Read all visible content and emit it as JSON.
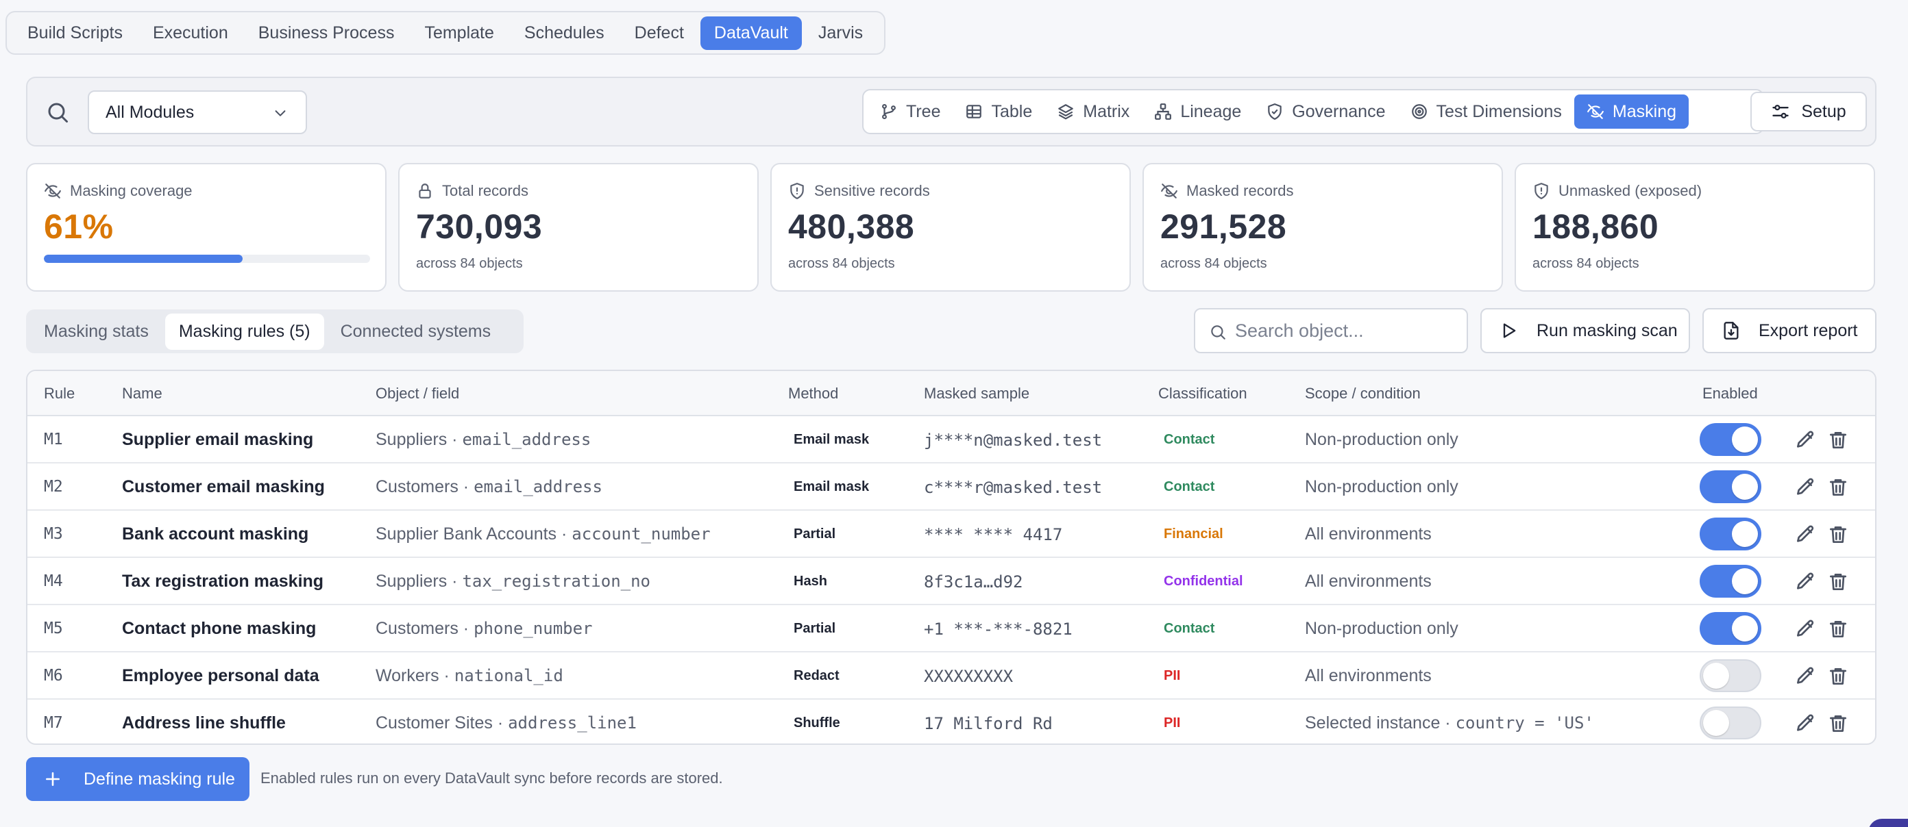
{
  "topnav": {
    "tabs": [
      {
        "label": "Build Scripts",
        "active": false
      },
      {
        "label": "Execution",
        "active": false
      },
      {
        "label": "Business Process",
        "active": false
      },
      {
        "label": "Template",
        "active": false
      },
      {
        "label": "Schedules",
        "active": false
      },
      {
        "label": "Defect",
        "active": false
      },
      {
        "label": "DataVault",
        "active": true
      },
      {
        "label": "Jarvis",
        "active": false
      }
    ]
  },
  "toolbar": {
    "module_select": "All Modules",
    "views": [
      {
        "label": "Tree",
        "icon": "git-branch-icon",
        "active": false
      },
      {
        "label": "Table",
        "icon": "table-icon",
        "active": false
      },
      {
        "label": "Matrix",
        "icon": "layers-icon",
        "active": false
      },
      {
        "label": "Lineage",
        "icon": "network-icon",
        "active": false
      },
      {
        "label": "Governance",
        "icon": "shield-check-icon",
        "active": false
      },
      {
        "label": "Test Dimensions",
        "icon": "target-icon",
        "active": false
      },
      {
        "label": "Masking",
        "icon": "eye-off-icon",
        "active": true
      }
    ],
    "setup_label": "Setup"
  },
  "cards": [
    {
      "label": "Masking coverage",
      "value": "61%",
      "icon": "eye-off-icon",
      "progress": 0.61
    },
    {
      "label": "Total records",
      "value": "730,093",
      "sub": "across 84 objects",
      "icon": "lock-icon"
    },
    {
      "label": "Sensitive records",
      "value": "480,388",
      "sub": "across 84 objects",
      "icon": "shield-alert-icon"
    },
    {
      "label": "Masked records",
      "value": "291,528",
      "sub": "across 84 objects",
      "icon": "eye-off-icon"
    },
    {
      "label": "Unmasked (exposed)",
      "value": "188,860",
      "sub": "across 84 objects",
      "icon": "shield-alert-icon"
    }
  ],
  "subtabs": [
    {
      "label": "Masking stats",
      "active": false
    },
    {
      "label": "Masking rules (5)",
      "active": true
    },
    {
      "label": "Connected systems",
      "active": false
    }
  ],
  "search": {
    "placeholder": "Search object..."
  },
  "actions": {
    "run_scan": "Run masking scan",
    "export": "Export report"
  },
  "table": {
    "headers": {
      "rule": "Rule",
      "name": "Name",
      "object": "Object / field",
      "method": "Method",
      "sample": "Masked sample",
      "classification": "Classification",
      "scope": "Scope / condition",
      "enabled": "Enabled"
    },
    "rows": [
      {
        "rule": "M1",
        "name": "Supplier email masking",
        "object": "Suppliers · ",
        "field": "email_address",
        "method": "Email mask",
        "sample": "j****n@masked.test",
        "classification": "Contact",
        "cls_color": "#2f8a5f",
        "scope": "Non-production only",
        "condition": "",
        "enabled": true
      },
      {
        "rule": "M2",
        "name": "Customer email masking",
        "object": "Customers · ",
        "field": "email_address",
        "method": "Email mask",
        "sample": "c****r@masked.test",
        "classification": "Contact",
        "cls_color": "#2f8a5f",
        "scope": "Non-production only",
        "condition": "",
        "enabled": true
      },
      {
        "rule": "M3",
        "name": "Bank account masking",
        "object": "Supplier Bank Accounts · ",
        "field": "account_number",
        "method": "Partial",
        "sample": "**** **** 4417",
        "classification": "Financial",
        "cls_color": "#d97706",
        "scope": "All environments",
        "condition": "",
        "enabled": true
      },
      {
        "rule": "M4",
        "name": "Tax registration masking",
        "object": "Suppliers · ",
        "field": "tax_registration_no",
        "method": "Hash",
        "sample": "8f3c1a…d92",
        "classification": "Confidential",
        "cls_color": "#9333ea",
        "scope": "All environments",
        "condition": "",
        "enabled": true
      },
      {
        "rule": "M5",
        "name": "Contact phone masking",
        "object": "Customers · ",
        "field": "phone_number",
        "method": "Partial",
        "sample": "+1 ***-***-8821",
        "classification": "Contact",
        "cls_color": "#2f8a5f",
        "scope": "Non-production only",
        "condition": "",
        "enabled": true
      },
      {
        "rule": "M6",
        "name": "Employee personal data",
        "object": "Workers · ",
        "field": "national_id",
        "method": "Redact",
        "sample": "XXXXXXXXX",
        "classification": "PII",
        "cls_color": "#dc2626",
        "scope": "All environments",
        "condition": "",
        "enabled": false
      },
      {
        "rule": "M7",
        "name": "Address line shuffle",
        "object": "Customer Sites · ",
        "field": "address_line1",
        "method": "Shuffle",
        "sample": "17 Milford Rd",
        "classification": "PII",
        "cls_color": "#dc2626",
        "scope": "Selected instance · ",
        "condition": "country = 'US'",
        "enabled": false
      }
    ]
  },
  "footer": {
    "define_label": "Define masking rule",
    "note": "Enabled rules run on every DataVault sync before records are stored."
  },
  "colors": {
    "accent": "#4a7de8",
    "coverage": "#d97706"
  }
}
